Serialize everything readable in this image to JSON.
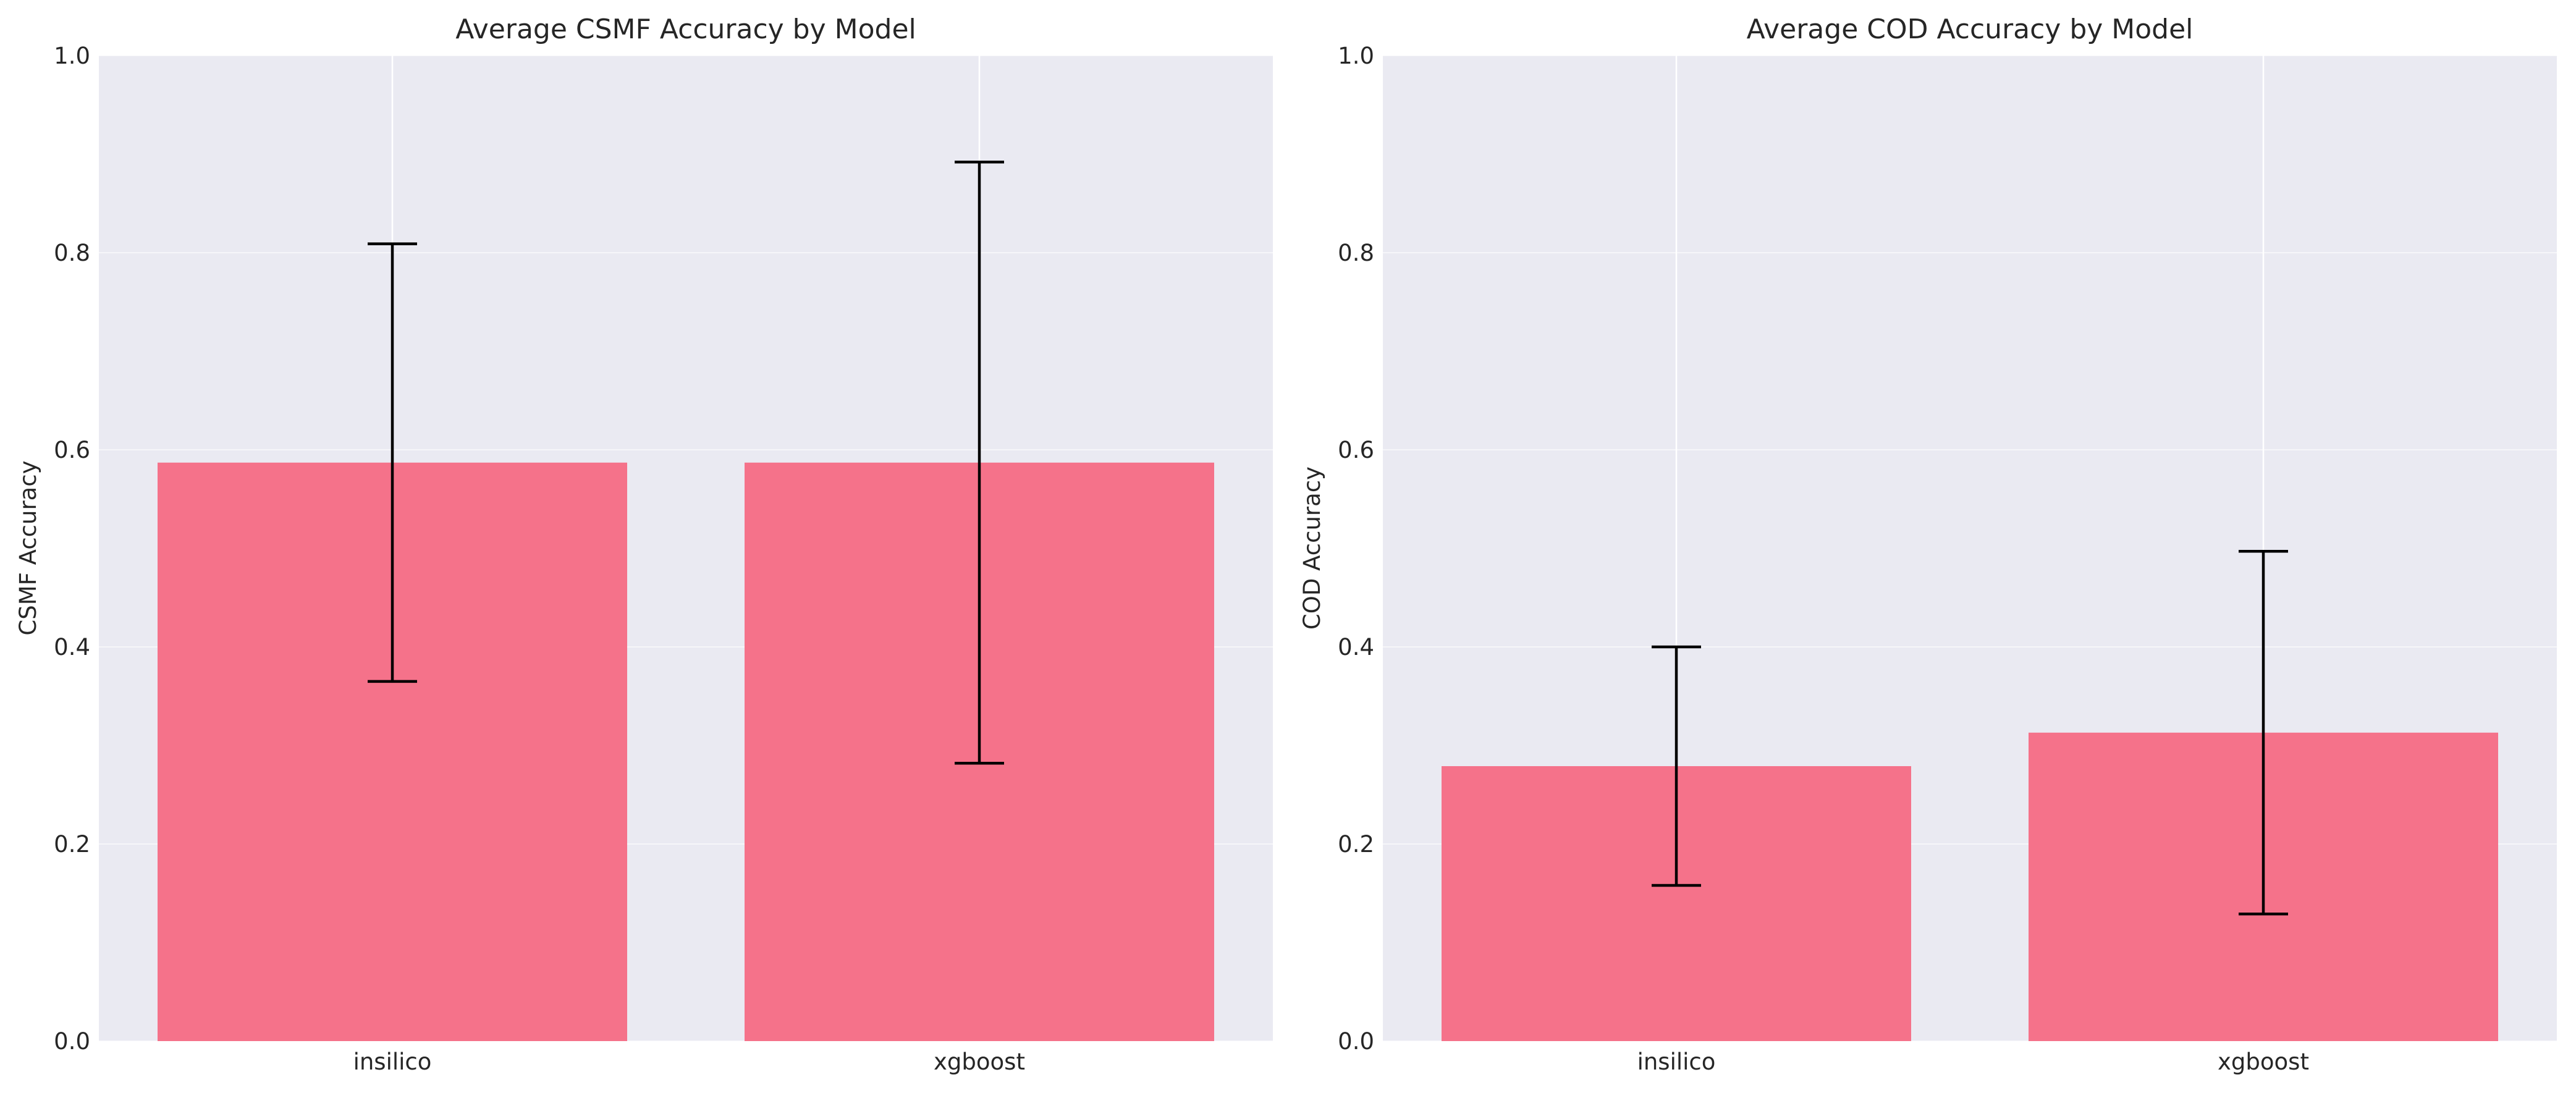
{
  "colors": {
    "plot_background": "#EAEAF2",
    "grid": "#FFFFFF",
    "bar": "#F5728A",
    "error_bar": "#000000",
    "text": "#262626"
  },
  "chart_data": [
    {
      "type": "bar",
      "title": "Average CSMF Accuracy by Model",
      "xlabel": "",
      "ylabel": "CSMF Accuracy",
      "categories": [
        "insilico",
        "xgboost"
      ],
      "values": [
        0.587,
        0.587
      ],
      "errors": [
        0.222,
        0.305
      ],
      "ylim": [
        0,
        1.0
      ],
      "yticks": [
        "0.0",
        "0.2",
        "0.4",
        "0.6",
        "0.8",
        "1.0"
      ],
      "grid": true
    },
    {
      "type": "bar",
      "title": "Average COD Accuracy by Model",
      "xlabel": "",
      "ylabel": "COD Accuracy",
      "categories": [
        "insilico",
        "xgboost"
      ],
      "values": [
        0.279,
        0.313
      ],
      "errors": [
        0.121,
        0.184
      ],
      "ylim": [
        0,
        1.0
      ],
      "yticks": [
        "0.0",
        "0.2",
        "0.4",
        "0.6",
        "0.8",
        "1.0"
      ],
      "grid": true
    }
  ]
}
